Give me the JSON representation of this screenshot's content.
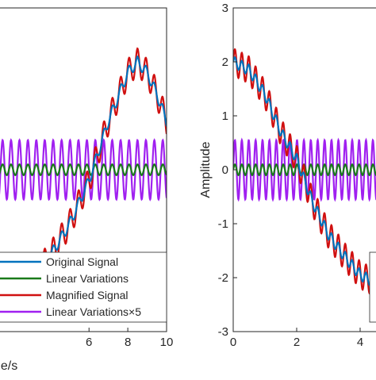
{
  "chart_data": [
    {
      "type": "line",
      "panel": "left",
      "title": "",
      "xlabel": "ne/s",
      "ylabel": "",
      "xlim": [
        1,
        10
      ],
      "ylim": [
        -3,
        3
      ],
      "x_ticks": [
        "6",
        "8",
        "10"
      ],
      "x_tick_values": [
        6,
        8,
        10
      ],
      "y_ticks": [],
      "grid": false,
      "legend_position": "bottom-right",
      "series": [
        {
          "name": "Original Signal",
          "color": "#0072BD",
          "points": [
            [
              1,
              -1.9
            ],
            [
              2,
              -2.1
            ],
            [
              3,
              -2.0
            ],
            [
              4,
              -1.6
            ],
            [
              5,
              -1.0
            ],
            [
              6,
              -0.2
            ],
            [
              7,
              0.9
            ],
            [
              8,
              1.8
            ],
            [
              8.5,
              2.0
            ],
            [
              9,
              1.8
            ],
            [
              9.5,
              1.4
            ],
            [
              10,
              0.9
            ]
          ]
        },
        {
          "name": "Linear Variations",
          "color": "#1A7A1A",
          "points": [
            [
              1,
              0.1
            ],
            [
              10,
              0.1
            ]
          ]
        },
        {
          "name": "Magnified Signal",
          "color": "#D01010",
          "points": [
            [
              1,
              -1.9
            ],
            [
              2,
              -2.1
            ],
            [
              3,
              -2.0
            ],
            [
              4,
              -1.6
            ],
            [
              5,
              -1.0
            ],
            [
              6,
              -0.2
            ],
            [
              7,
              0.9
            ],
            [
              8,
              1.8
            ],
            [
              8.5,
              2.0
            ],
            [
              9,
              1.8
            ],
            [
              9.5,
              1.4
            ],
            [
              10,
              0.9
            ]
          ]
        },
        {
          "name": "Linear Variations×5",
          "color": "#A020F0",
          "points": [
            [
              1,
              0.1
            ],
            [
              10,
              0.1
            ]
          ]
        }
      ]
    },
    {
      "type": "line",
      "panel": "right",
      "title": "",
      "xlabel": "",
      "ylabel": "Amplitude",
      "xlim": [
        0,
        5
      ],
      "ylim": [
        -3,
        3
      ],
      "x_ticks": [
        "0",
        "2",
        "4"
      ],
      "x_tick_values": [
        0,
        2,
        4
      ],
      "y_ticks": [
        "3",
        "2",
        "1",
        "0",
        "-1",
        "-2",
        "-3"
      ],
      "y_tick_values": [
        3,
        2,
        1,
        0,
        -1,
        -2,
        -3
      ],
      "grid": false,
      "series": [
        {
          "name": "Original Signal",
          "color": "#0072BD",
          "points": [
            [
              0,
              2.0
            ],
            [
              0.5,
              1.85
            ],
            [
              1,
              1.4
            ],
            [
              1.5,
              0.7
            ],
            [
              2,
              0.2
            ],
            [
              2.5,
              -0.6
            ],
            [
              3,
              -1.2
            ],
            [
              3.5,
              -1.6
            ],
            [
              4,
              -1.95
            ],
            [
              4.5,
              -2.1
            ]
          ]
        },
        {
          "name": "Linear Variations",
          "color": "#1A7A1A",
          "points": [
            [
              0,
              0.1
            ],
            [
              5,
              0.1
            ]
          ]
        },
        {
          "name": "Magnified Signal",
          "color": "#D01010",
          "points": [
            [
              0,
              2.0
            ],
            [
              0.5,
              1.85
            ],
            [
              1,
              1.4
            ],
            [
              1.5,
              0.7
            ],
            [
              2,
              0.2
            ],
            [
              2.5,
              -0.6
            ],
            [
              3,
              -1.2
            ],
            [
              3.5,
              -1.6
            ],
            [
              4,
              -1.95
            ],
            [
              4.5,
              -2.1
            ]
          ]
        },
        {
          "name": "Linear Variations×5",
          "color": "#A020F0",
          "points": [
            [
              0,
              0.1
            ],
            [
              5,
              0.1
            ]
          ]
        }
      ]
    }
  ],
  "legend": {
    "entries": [
      {
        "label": "Original Signal",
        "color": "#0072BD"
      },
      {
        "label": "Linear Variations",
        "color": "#1A7A1A"
      },
      {
        "label": "Magnified Signal",
        "color": "#D01010"
      },
      {
        "label": "Linear Variations×5",
        "color": "#A020F0"
      }
    ]
  }
}
